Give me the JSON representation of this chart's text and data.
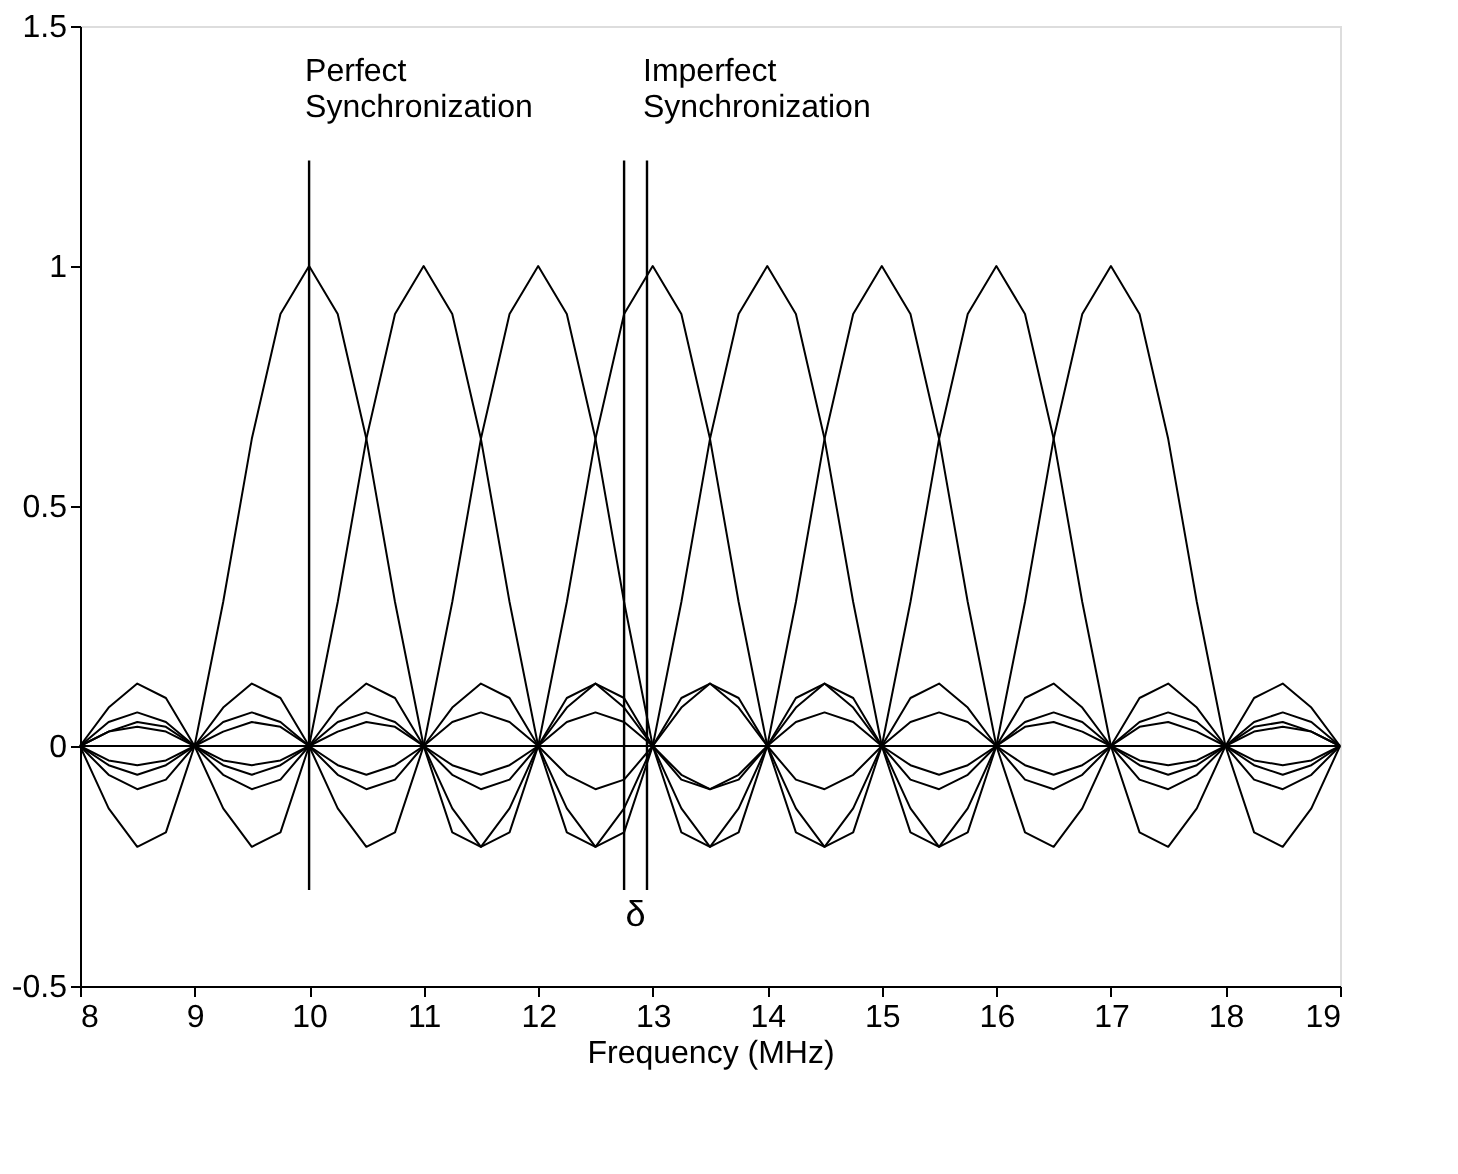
{
  "chart_data": {
    "type": "line",
    "xlabel": "Frequency (MHz)",
    "x": [
      8,
      8.25,
      8.5,
      8.75,
      9,
      9.25,
      9.5,
      9.75,
      10,
      10.25,
      10.5,
      10.75,
      11,
      11.25,
      11.5,
      11.75,
      12,
      12.25,
      12.5,
      12.75,
      13,
      13.25,
      13.5,
      13.75,
      14,
      14.25,
      14.5,
      14.75,
      15,
      15.25,
      15.5,
      15.75,
      16,
      16.25,
      16.5,
      16.75,
      17,
      17.25,
      17.5,
      17.75,
      18,
      18.25,
      18.5,
      18.75,
      19
    ],
    "series": [
      {
        "color": "#000000",
        "values": [
          0,
          -0.13,
          -0.21,
          -0.18,
          0,
          0.3,
          0.64,
          0.9,
          1,
          0.9,
          0.64,
          0.3,
          0,
          -0.18,
          -0.21,
          -0.13,
          0,
          0.1,
          0.13,
          0.08,
          0,
          -0.07,
          -0.09,
          -0.06,
          0,
          0.05,
          0.07,
          0.05,
          0,
          -0.04,
          -0.06,
          -0.04,
          0,
          0.04,
          0.05,
          0.03,
          0,
          -0.03,
          -0.04,
          -0.03,
          0,
          0.03,
          0.04,
          0.03,
          0
        ]
      },
      {
        "color": "#000000",
        "values": [
          0,
          0.08,
          0.13,
          0.1,
          0,
          -0.13,
          -0.21,
          -0.18,
          0,
          0.3,
          0.64,
          0.9,
          1,
          0.9,
          0.64,
          0.3,
          0,
          -0.18,
          -0.21,
          -0.13,
          0,
          0.1,
          0.13,
          0.08,
          0,
          -0.07,
          -0.09,
          -0.06,
          0,
          0.05,
          0.07,
          0.05,
          0,
          -0.04,
          -0.06,
          -0.04,
          0,
          0.04,
          0.05,
          0.03,
          0,
          -0.03,
          -0.04,
          -0.03,
          0
        ]
      },
      {
        "color": "#000000",
        "values": [
          0,
          -0.06,
          -0.09,
          -0.07,
          0,
          0.08,
          0.13,
          0.1,
          0,
          -0.13,
          -0.21,
          -0.18,
          0,
          0.3,
          0.64,
          0.9,
          1,
          0.9,
          0.64,
          0.3,
          0,
          -0.18,
          -0.21,
          -0.13,
          0,
          0.1,
          0.13,
          0.08,
          0,
          -0.07,
          -0.09,
          -0.06,
          0,
          0.05,
          0.07,
          0.05,
          0,
          -0.04,
          -0.06,
          -0.04,
          0,
          0.04,
          0.05,
          0.03,
          0
        ]
      },
      {
        "color": "#000000",
        "values": [
          0,
          0.05,
          0.07,
          0.05,
          0,
          -0.06,
          -0.09,
          -0.07,
          0,
          0.08,
          0.13,
          0.1,
          0,
          -0.13,
          -0.21,
          -0.18,
          0,
          0.3,
          0.64,
          0.9,
          1,
          0.9,
          0.64,
          0.3,
          0,
          -0.18,
          -0.21,
          -0.13,
          0,
          0.1,
          0.13,
          0.08,
          0,
          -0.07,
          -0.09,
          -0.06,
          0,
          0.05,
          0.07,
          0.05,
          0,
          -0.04,
          -0.06,
          -0.04,
          0
        ]
      },
      {
        "color": "#000000",
        "values": [
          0,
          -0.04,
          -0.06,
          -0.04,
          0,
          0.05,
          0.07,
          0.05,
          0,
          -0.06,
          -0.09,
          -0.07,
          0,
          0.08,
          0.13,
          0.1,
          0,
          -0.13,
          -0.21,
          -0.18,
          0,
          0.3,
          0.64,
          0.9,
          1,
          0.9,
          0.64,
          0.3,
          0,
          -0.18,
          -0.21,
          -0.13,
          0,
          0.1,
          0.13,
          0.08,
          0,
          -0.07,
          -0.09,
          -0.06,
          0,
          0.05,
          0.07,
          0.05,
          0
        ]
      },
      {
        "color": "#000000",
        "values": [
          0,
          0.03,
          0.05,
          0.04,
          0,
          -0.04,
          -0.06,
          -0.04,
          0,
          0.05,
          0.07,
          0.05,
          0,
          -0.06,
          -0.09,
          -0.07,
          0,
          0.08,
          0.13,
          0.1,
          0,
          -0.13,
          -0.21,
          -0.18,
          0,
          0.3,
          0.64,
          0.9,
          1,
          0.9,
          0.64,
          0.3,
          0,
          -0.18,
          -0.21,
          -0.13,
          0,
          0.1,
          0.13,
          0.08,
          0,
          -0.07,
          -0.09,
          -0.06,
          0
        ]
      },
      {
        "color": "#000000",
        "values": [
          0,
          -0.03,
          -0.04,
          -0.03,
          0,
          0.03,
          0.05,
          0.04,
          0,
          -0.04,
          -0.06,
          -0.04,
          0,
          0.05,
          0.07,
          0.05,
          0,
          -0.06,
          -0.09,
          -0.07,
          0,
          0.08,
          0.13,
          0.1,
          0,
          -0.13,
          -0.21,
          -0.18,
          0,
          0.3,
          0.64,
          0.9,
          1,
          0.9,
          0.64,
          0.3,
          0,
          -0.18,
          -0.21,
          -0.13,
          0,
          0.1,
          0.13,
          0.08,
          0
        ]
      },
      {
        "color": "#000000",
        "values": [
          0,
          0.03,
          0.04,
          0.03,
          0,
          -0.03,
          -0.04,
          -0.03,
          0,
          0.03,
          0.05,
          0.04,
          0,
          -0.04,
          -0.06,
          -0.04,
          0,
          0.05,
          0.07,
          0.05,
          0,
          -0.06,
          -0.09,
          -0.07,
          0,
          0.08,
          0.13,
          0.1,
          0,
          -0.13,
          -0.21,
          -0.18,
          0,
          0.3,
          0.64,
          0.9,
          1,
          0.9,
          0.64,
          0.3,
          0,
          -0.18,
          -0.21,
          -0.13,
          0
        ]
      }
    ],
    "xlim": [
      8,
      19
    ],
    "xticks": [
      8,
      9,
      10,
      11,
      12,
      13,
      14,
      15,
      16,
      17,
      18,
      19
    ],
    "ylim": [
      -0.5,
      1.5
    ],
    "yticks": [
      -0.5,
      0,
      0.5,
      1,
      1.5
    ],
    "grid": false,
    "legend": false,
    "marker": "none",
    "line_style": "solid",
    "ref_lines": [
      {
        "axis": "y",
        "value": 0,
        "color": "#000000"
      },
      {
        "axis": "x",
        "value": 10,
        "label": "Perfect Synchronization",
        "color": "#000000"
      },
      {
        "axis": "x",
        "value": 12.75,
        "color": "#000000"
      },
      {
        "axis": "x",
        "value": 12.95,
        "label": "Imperfect Synchronization",
        "color": "#000000"
      }
    ],
    "annotations": [
      "δ"
    ]
  }
}
